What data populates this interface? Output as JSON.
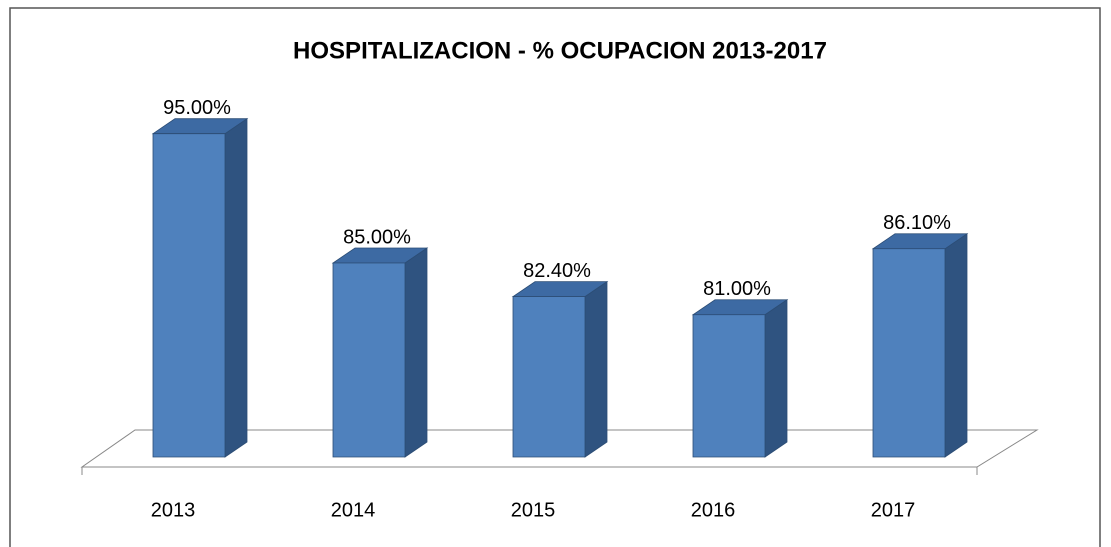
{
  "chart_data": {
    "type": "bar3d",
    "title": "HOSPITALIZACION - % OCUPACION 2013-2017",
    "categories": [
      "2013",
      "2014",
      "2015",
      "2016",
      "2017"
    ],
    "values": [
      95,
      85,
      82.4,
      81,
      86.1
    ],
    "value_labels": [
      "95.00%",
      "85.00%",
      "82.40%",
      "81.00%",
      "86.10%"
    ],
    "color": "#4f81bd",
    "ylim": [
      70,
      100
    ]
  }
}
